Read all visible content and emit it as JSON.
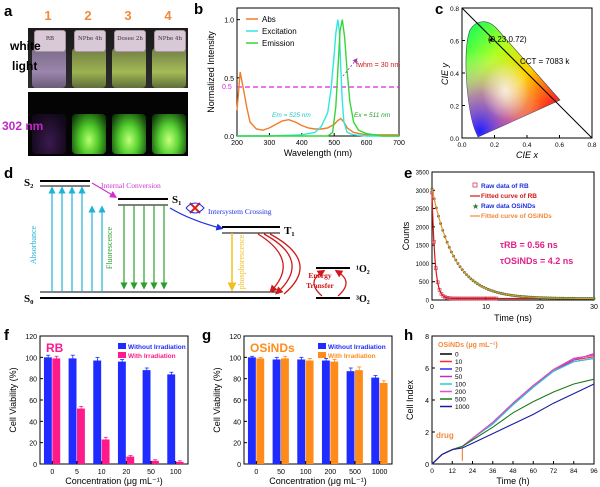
{
  "panel_a": {
    "letter": "a",
    "vial_numbers": [
      "1",
      "2",
      "3",
      "4"
    ],
    "vial_caps": [
      "RB",
      "NPbe\n4h",
      "Dosee\n2h",
      "NPbe\n4h"
    ],
    "label_white": "white",
    "label_light": "light",
    "label_uv": "302 nm"
  },
  "panel_b": {
    "letter": "b",
    "ylabel": "Normalized Intensity",
    "xlabel": "Wavelength (nm)",
    "x_ticks": [
      "200",
      "300",
      "400",
      "500",
      "600",
      "700"
    ],
    "y_ticks": [
      "0.0",
      "0.5",
      "1.0"
    ],
    "legend": [
      "Abs",
      "Excitation",
      "Emission"
    ],
    "annot_fwhm": "fwhm = 30 nm",
    "annot_em": "Em = 525 nm",
    "annot_ex": "Ex = 511 nm",
    "annot_half": "0.5"
  },
  "panel_c": {
    "letter": "c",
    "ylabel": "CIE y",
    "xlabel": "CIE x",
    "coord": "(0.23,0.72)",
    "cct": "CCT = 7083 k",
    "x_ticks": [
      "0.0",
      "0.2",
      "0.4",
      "0.6",
      "0.8"
    ],
    "y_ticks": [
      "0.0",
      "0.2",
      "0.4",
      "0.6",
      "0.8"
    ]
  },
  "panel_d": {
    "letter": "d",
    "s2": "S₂",
    "s1": "S₁",
    "s0": "S₀",
    "t1": "T₁",
    "o2_singlet": "¹O₂",
    "o2_triplet": "³O₂",
    "internal_conversion": "Internal Conversion",
    "isc": "Intersystem Crossing",
    "absorbance": "Absorbance",
    "fluorescence": "Fluorescence",
    "phosphorescence": "phosphorescence",
    "energy_transfer_1": "Energy",
    "energy_transfer_2": "Transfer"
  },
  "panel_e": {
    "letter": "e",
    "ylabel": "Counts",
    "xlabel": "Time (ns)",
    "x_ticks": [
      "0",
      "10",
      "20",
      "30"
    ],
    "y_ticks": [
      "0",
      "500",
      "1000",
      "1500",
      "2000",
      "2500",
      "3000",
      "3500"
    ],
    "legend": [
      "Raw data of RB",
      "Fitted curve of RB",
      "Raw data OSiNDs",
      "Fitted curve of OSiNDs"
    ],
    "tau_rb": "τRB = 0.56 ns",
    "tau_osinds": "τOSiNDs = 4.2 ns"
  },
  "panel_f": {
    "letter": "f",
    "title": "RB",
    "ylabel": "Cell Viability (%)",
    "xlabel": "Concentration (μg mL⁻¹)",
    "legend": [
      "Without Irradiation",
      "With Irradiation"
    ]
  },
  "panel_g": {
    "letter": "g",
    "title": "OSiNDs",
    "ylabel": "Cell Viability (%)",
    "xlabel": "Concentration (μg mL⁻¹)",
    "legend": [
      "Without Irradiation",
      "With Irradiation"
    ]
  },
  "panel_h": {
    "letter": "h",
    "ylabel": "Cell Index",
    "xlabel": "Time (h)",
    "legend_title": "OSiNDs (μg mL⁻¹)",
    "drug_label": "drug"
  },
  "colors": {
    "orange_accent": "#f08a3c",
    "magenta": "#e0208a",
    "purple_uv": "#c227c9",
    "blue": "#1f2bff",
    "pink": "#ff1a8c",
    "orange_bar": "#ff8c1a",
    "abs": "#f07c28",
    "excitation": "#2ee8e0",
    "emission": "#36d636"
  },
  "chart_data": [
    {
      "id": "b",
      "type": "line",
      "xlabel": "Wavelength (nm)",
      "ylabel": "Normalized Intensity",
      "xlim": [
        200,
        700
      ],
      "ylim": [
        0,
        1.1
      ],
      "series": [
        {
          "name": "Abs",
          "x": [
            200,
            210,
            220,
            230,
            240,
            260,
            280,
            300,
            320,
            340,
            360,
            380,
            400,
            420,
            440,
            460,
            480,
            500,
            510,
            520,
            530,
            540,
            560,
            580,
            600,
            650,
            700
          ],
          "y": [
            0.22,
            0.55,
            0.4,
            0.25,
            0.12,
            0.06,
            0.05,
            0.07,
            0.1,
            0.13,
            0.14,
            0.12,
            0.09,
            0.07,
            0.06,
            0.06,
            0.07,
            0.1,
            0.13,
            0.15,
            0.12,
            0.07,
            0.03,
            0.02,
            0.01,
            0.01,
            0.01
          ]
        },
        {
          "name": "Excitation",
          "x": [
            200,
            300,
            400,
            440,
            460,
            480,
            490,
            500,
            505,
            511,
            516,
            520,
            525,
            530,
            540,
            560,
            600,
            700
          ],
          "y": [
            0.0,
            0.0,
            0.01,
            0.03,
            0.08,
            0.2,
            0.4,
            0.7,
            0.88,
            1.0,
            0.9,
            0.6,
            0.3,
            0.12,
            0.03,
            0.01,
            0.0,
            0.0
          ]
        },
        {
          "name": "Emission",
          "x": [
            200,
            400,
            480,
            495,
            505,
            512,
            518,
            525,
            532,
            540,
            548,
            560,
            575,
            600,
            650,
            700
          ],
          "y": [
            0.0,
            0.0,
            0.0,
            0.03,
            0.25,
            0.6,
            0.9,
            1.0,
            0.85,
            0.55,
            0.3,
            0.12,
            0.05,
            0.02,
            0.0,
            0.0
          ]
        }
      ]
    },
    {
      "id": "e",
      "type": "scatter",
      "xlabel": "Time (ns)",
      "ylabel": "Counts",
      "xlim": [
        0,
        30
      ],
      "ylim": [
        0,
        3500
      ],
      "series": [
        {
          "name": "Raw data of RB",
          "tau": 0.56,
          "peak": 2900
        },
        {
          "name": "Fitted curve of RB",
          "tau": 0.56,
          "peak": 2900
        },
        {
          "name": "Raw data OSiNDs",
          "tau": 4.2,
          "peak": 3000
        },
        {
          "name": "Fitted curve of OSiNDs",
          "tau": 4.2,
          "peak": 3000
        }
      ]
    },
    {
      "id": "f",
      "type": "bar",
      "title": "RB",
      "xlabel": "Concentration (μg mL⁻¹)",
      "ylabel": "Cell Viability (%)",
      "ylim": [
        0,
        120
      ],
      "y_ticks": [
        0,
        20,
        40,
        60,
        80,
        100,
        120
      ],
      "categories": [
        "0",
        "5",
        "10",
        "20",
        "50",
        "100"
      ],
      "series": [
        {
          "name": "Without Irradiation",
          "values": [
            100,
            99,
            97,
            96,
            88,
            84
          ],
          "errors": [
            2,
            3,
            3,
            2,
            2,
            2
          ]
        },
        {
          "name": "With Irradiation",
          "values": [
            99,
            52,
            23,
            7,
            3,
            2
          ],
          "errors": [
            2,
            2,
            2,
            1,
            1,
            1
          ]
        }
      ]
    },
    {
      "id": "g",
      "type": "bar",
      "title": "OSiNDs",
      "xlabel": "Concentration (μg mL⁻¹)",
      "ylabel": "Cell Viability (%)",
      "ylim": [
        0,
        120
      ],
      "y_ticks": [
        0,
        20,
        40,
        60,
        80,
        100,
        120
      ],
      "categories": [
        "0",
        "50",
        "100",
        "200",
        "500",
        "1000"
      ],
      "series": [
        {
          "name": "Without Irradiation",
          "values": [
            100,
            98,
            98,
            97,
            87,
            81
          ],
          "errors": [
            1,
            2,
            2,
            2,
            3,
            2
          ]
        },
        {
          "name": "With Irradiation",
          "values": [
            99,
            99,
            97,
            96,
            88,
            76
          ],
          "errors": [
            1,
            2,
            2,
            2,
            3,
            2
          ]
        }
      ]
    },
    {
      "id": "h",
      "type": "line",
      "xlabel": "Time (h)",
      "ylabel": "Cell Index",
      "xlim": [
        0,
        96
      ],
      "ylim": [
        0,
        8
      ],
      "x_ticks": [
        0,
        12,
        24,
        36,
        48,
        60,
        72,
        84,
        96
      ],
      "y_ticks": [
        0,
        2,
        4,
        6,
        8
      ],
      "series": [
        {
          "name": "0",
          "color": "#000000",
          "x": [
            0,
            6,
            12,
            18,
            24,
            36,
            48,
            60,
            72,
            84,
            96
          ],
          "y": [
            0,
            0.6,
            0.9,
            1.1,
            1.6,
            2.6,
            3.8,
            4.9,
            5.9,
            6.6,
            6.8
          ]
        },
        {
          "name": "10",
          "color": "#ff2a2a",
          "x": [
            0,
            6,
            12,
            18,
            24,
            36,
            48,
            60,
            72,
            84,
            96
          ],
          "y": [
            0,
            0.6,
            0.9,
            1.1,
            1.6,
            2.6,
            3.8,
            4.9,
            5.9,
            6.5,
            6.7
          ]
        },
        {
          "name": "20",
          "color": "#2a2aff",
          "x": [
            0,
            6,
            12,
            18,
            24,
            36,
            48,
            60,
            72,
            84,
            96
          ],
          "y": [
            0,
            0.6,
            0.9,
            1.1,
            1.6,
            2.5,
            3.7,
            4.8,
            5.8,
            6.4,
            6.6
          ]
        },
        {
          "name": "50",
          "color": "#c030c0",
          "x": [
            0,
            6,
            12,
            18,
            24,
            36,
            48,
            60,
            72,
            84,
            96
          ],
          "y": [
            0,
            0.6,
            0.9,
            1.1,
            1.6,
            2.6,
            3.8,
            4.9,
            5.8,
            6.5,
            6.9
          ]
        },
        {
          "name": "100",
          "color": "#22d0d0",
          "x": [
            0,
            6,
            12,
            18,
            24,
            36,
            48,
            60,
            72,
            84,
            96
          ],
          "y": [
            0,
            0.6,
            0.9,
            1.1,
            1.6,
            2.5,
            3.7,
            4.8,
            5.8,
            6.4,
            6.6
          ]
        },
        {
          "name": "200",
          "color": "#e050d0",
          "x": [
            0,
            6,
            12,
            18,
            24,
            36,
            48,
            60,
            72,
            84,
            96
          ],
          "y": [
            0,
            0.6,
            0.9,
            1.1,
            1.6,
            2.6,
            3.8,
            4.9,
            5.9,
            6.6,
            6.8
          ]
        },
        {
          "name": "500",
          "color": "#1a7a1a",
          "x": [
            0,
            6,
            12,
            18,
            24,
            36,
            48,
            60,
            72,
            84,
            96
          ],
          "y": [
            0,
            0.6,
            0.9,
            1.1,
            1.5,
            2.3,
            3.2,
            3.9,
            4.5,
            5.0,
            5.3
          ]
        },
        {
          "name": "1000",
          "color": "#1a1aa0",
          "x": [
            0,
            6,
            12,
            18,
            24,
            36,
            48,
            60,
            72,
            84,
            96
          ],
          "y": [
            0,
            0.6,
            0.9,
            1.0,
            1.3,
            1.9,
            2.5,
            3.1,
            3.8,
            4.4,
            5.0
          ]
        }
      ]
    }
  ]
}
